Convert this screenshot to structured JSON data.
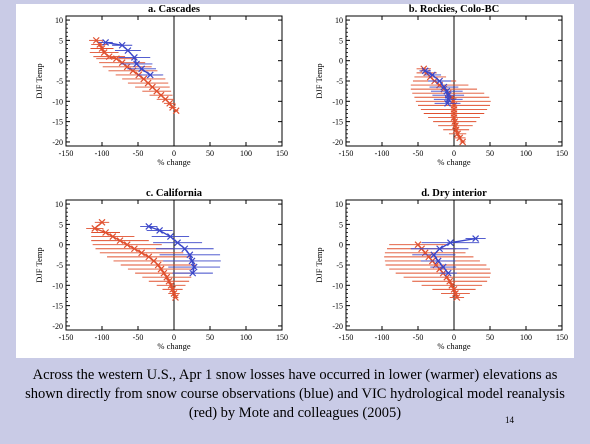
{
  "slide": {
    "caption": "Across the western U.S., Apr 1 snow losses have occurred in lower (warmer) elevations as shown directly from snow course observations (blue) and VIC hydrological model reanalysis (red) by Mote and colleagues (2005)",
    "page_number": "14",
    "colors": {
      "background": "#c9cbe6",
      "observed": "#3b47c9",
      "model": "#e0502f"
    }
  },
  "chart_data": [
    {
      "type": "scatter",
      "title": "a. Cascades",
      "xlabel": "% change",
      "ylabel": "DJF Temp",
      "xlim": [
        -150,
        150
      ],
      "ylim": [
        -21,
        11
      ],
      "xticks": [
        -150,
        -100,
        -50,
        0,
        50,
        100,
        150
      ],
      "yticks": [
        10,
        5,
        0,
        -5,
        -10,
        -15,
        -20
      ],
      "series": [
        {
          "color": "#e0502f",
          "points": [
            {
              "x": -108,
              "y": 5,
              "err": 10
            },
            {
              "x": -103,
              "y": 4,
              "err": 12
            },
            {
              "x": -100,
              "y": 3,
              "err": 16
            },
            {
              "x": -97,
              "y": 2,
              "err": 20
            },
            {
              "x": -90,
              "y": 1,
              "err": 22
            },
            {
              "x": -80,
              "y": 0.5,
              "err": 28
            },
            {
              "x": -72,
              "y": -0.5,
              "err": 32
            },
            {
              "x": -65,
              "y": -1.5,
              "err": 34
            },
            {
              "x": -57,
              "y": -2.5,
              "err": 34
            },
            {
              "x": -49,
              "y": -3.5,
              "err": 32
            },
            {
              "x": -42,
              "y": -4.5,
              "err": 30
            },
            {
              "x": -36,
              "y": -5.5,
              "err": 28
            },
            {
              "x": -30,
              "y": -6.5,
              "err": 24
            },
            {
              "x": -24,
              "y": -7.5,
              "err": 20
            },
            {
              "x": -18,
              "y": -8.5,
              "err": 16
            },
            {
              "x": -12,
              "y": -9.5,
              "err": 12
            },
            {
              "x": -6,
              "y": -10.5,
              "err": 8
            },
            {
              "x": -2,
              "y": -11.5,
              "err": 5
            },
            {
              "x": 3,
              "y": -12.3,
              "err": 3
            }
          ]
        },
        {
          "color": "#3b47c9",
          "points": [
            {
              "x": -95,
              "y": 4.5,
              "err": 10
            },
            {
              "x": -72,
              "y": 3.8,
              "err": 14
            },
            {
              "x": -64,
              "y": 2.5,
              "err": 18
            },
            {
              "x": -55,
              "y": 0.8,
              "err": 22
            },
            {
              "x": -52,
              "y": -0.8,
              "err": 22
            },
            {
              "x": -45,
              "y": -2,
              "err": 20
            },
            {
              "x": -33,
              "y": -3.5,
              "err": 18
            }
          ]
        }
      ]
    },
    {
      "type": "scatter",
      "title": "b. Rockies, Colo-BC",
      "xlabel": "% change",
      "ylabel": "DJF Temp",
      "xlim": [
        -150,
        150
      ],
      "ylim": [
        -21,
        11
      ],
      "xticks": [
        -150,
        -100,
        -50,
        0,
        50,
        100,
        150
      ],
      "yticks": [
        10,
        5,
        0,
        -5,
        -10,
        -15,
        -20
      ],
      "series": [
        {
          "color": "#e0502f",
          "points": [
            {
              "x": -42,
              "y": -2,
              "err": 10
            },
            {
              "x": -38,
              "y": -3,
              "err": 14
            },
            {
              "x": -33,
              "y": -4,
              "err": 22
            },
            {
              "x": -27,
              "y": -5,
              "err": 30
            },
            {
              "x": -20,
              "y": -6,
              "err": 40
            },
            {
              "x": -14,
              "y": -7,
              "err": 46
            },
            {
              "x": -8,
              "y": -8,
              "err": 50
            },
            {
              "x": -3,
              "y": -9,
              "err": 52
            },
            {
              "x": -1,
              "y": -10,
              "err": 52
            },
            {
              "x": 0,
              "y": -11,
              "err": 50
            },
            {
              "x": 0,
              "y": -12,
              "err": 46
            },
            {
              "x": 0,
              "y": -13,
              "err": 42
            },
            {
              "x": 0,
              "y": -14,
              "err": 36
            },
            {
              "x": 1,
              "y": -15,
              "err": 30
            },
            {
              "x": 2,
              "y": -16,
              "err": 24
            },
            {
              "x": 3,
              "y": -17,
              "err": 18
            },
            {
              "x": 5,
              "y": -18,
              "err": 12
            },
            {
              "x": 8,
              "y": -19,
              "err": 8
            },
            {
              "x": 12,
              "y": -20,
              "err": 4
            }
          ]
        },
        {
          "color": "#3b47c9",
          "points": [
            {
              "x": -40,
              "y": -2.5,
              "err": 8
            },
            {
              "x": -30,
              "y": -3.5,
              "err": 12
            },
            {
              "x": -20,
              "y": -5,
              "err": 16
            },
            {
              "x": -14,
              "y": -6.5,
              "err": 20
            },
            {
              "x": -10,
              "y": -7.5,
              "err": 22
            },
            {
              "x": -8,
              "y": -8.5,
              "err": 22
            },
            {
              "x": -8,
              "y": -9.5,
              "err": 20
            },
            {
              "x": -9,
              "y": -10.5,
              "err": 18
            }
          ]
        }
      ]
    },
    {
      "type": "scatter",
      "title": "c. California",
      "xlabel": "% change",
      "ylabel": "DJF Temp",
      "xlim": [
        -150,
        150
      ],
      "ylim": [
        -21,
        11
      ],
      "xticks": [
        -150,
        -100,
        -50,
        0,
        50,
        100,
        150
      ],
      "yticks": [
        10,
        5,
        0,
        -5,
        -10,
        -15,
        -20
      ],
      "series": [
        {
          "color": "#e0502f",
          "points": [
            {
              "x": -100,
              "y": 5.5,
              "err": 10
            },
            {
              "x": -110,
              "y": 4,
              "err": 12
            },
            {
              "x": -95,
              "y": 3,
              "err": 20
            },
            {
              "x": -85,
              "y": 2,
              "err": 30
            },
            {
              "x": -75,
              "y": 1,
              "err": 40
            },
            {
              "x": -65,
              "y": 0,
              "err": 48
            },
            {
              "x": -55,
              "y": -1,
              "err": 54
            },
            {
              "x": -45,
              "y": -2,
              "err": 58
            },
            {
              "x": -35,
              "y": -3,
              "err": 58
            },
            {
              "x": -28,
              "y": -4,
              "err": 56
            },
            {
              "x": -22,
              "y": -5,
              "err": 52
            },
            {
              "x": -18,
              "y": -6,
              "err": 46
            },
            {
              "x": -14,
              "y": -7,
              "err": 40
            },
            {
              "x": -10,
              "y": -8,
              "err": 34
            },
            {
              "x": -7,
              "y": -9,
              "err": 28
            },
            {
              "x": -4,
              "y": -10,
              "err": 20
            },
            {
              "x": -2,
              "y": -11,
              "err": 14
            },
            {
              "x": 0,
              "y": -12,
              "err": 8
            },
            {
              "x": 2,
              "y": -13,
              "err": 4
            }
          ]
        },
        {
          "color": "#3b47c9",
          "points": [
            {
              "x": -35,
              "y": 4.5,
              "err": 12
            },
            {
              "x": -20,
              "y": 3.5,
              "err": 18
            },
            {
              "x": -5,
              "y": 2,
              "err": 26
            },
            {
              "x": 5,
              "y": 0.5,
              "err": 34
            },
            {
              "x": 15,
              "y": -1,
              "err": 40
            },
            {
              "x": 22,
              "y": -2.5,
              "err": 42
            },
            {
              "x": 25,
              "y": -4,
              "err": 40
            },
            {
              "x": 28,
              "y": -5.5,
              "err": 36
            },
            {
              "x": 26,
              "y": -7,
              "err": 28
            }
          ]
        }
      ]
    },
    {
      "type": "scatter",
      "title": "d. Dry interior",
      "xlabel": "% change",
      "ylabel": "DJF Temp",
      "xlim": [
        -150,
        150
      ],
      "ylim": [
        -21,
        11
      ],
      "xticks": [
        -150,
        -100,
        -50,
        0,
        50,
        100,
        150
      ],
      "yticks": [
        10,
        5,
        0,
        -5,
        -10,
        -15,
        -20
      ],
      "series": [
        {
          "color": "#e0502f",
          "points": [
            {
              "x": -50,
              "y": 0,
              "err": 40
            },
            {
              "x": -45,
              "y": -1,
              "err": 48
            },
            {
              "x": -40,
              "y": -2,
              "err": 56
            },
            {
              "x": -35,
              "y": -3,
              "err": 62
            },
            {
              "x": -30,
              "y": -4,
              "err": 66
            },
            {
              "x": -25,
              "y": -5,
              "err": 70
            },
            {
              "x": -20,
              "y": -6,
              "err": 70
            },
            {
              "x": -15,
              "y": -7,
              "err": 66
            },
            {
              "x": -10,
              "y": -8,
              "err": 60
            },
            {
              "x": -6,
              "y": -9,
              "err": 52
            },
            {
              "x": -3,
              "y": -10,
              "err": 42
            },
            {
              "x": 0,
              "y": -11,
              "err": 30
            },
            {
              "x": 2,
              "y": -12,
              "err": 20
            },
            {
              "x": 4,
              "y": -13,
              "err": 10
            }
          ]
        },
        {
          "color": "#3b47c9",
          "points": [
            {
              "x": 30,
              "y": 1.5,
              "err": 14
            },
            {
              "x": -5,
              "y": 0.5,
              "err": 40
            },
            {
              "x": -20,
              "y": -1,
              "err": 40
            },
            {
              "x": -28,
              "y": -2.5,
              "err": 30
            },
            {
              "x": -22,
              "y": -4,
              "err": 24
            },
            {
              "x": -15,
              "y": -5.5,
              "err": 18
            },
            {
              "x": -8,
              "y": -7,
              "err": 12
            }
          ]
        }
      ]
    }
  ]
}
